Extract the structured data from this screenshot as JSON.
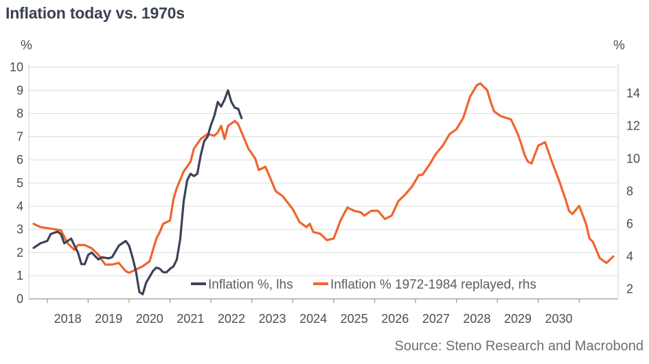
{
  "chart_data": {
    "type": "line",
    "title": "Inflation today vs. 1970s",
    "source": "Source: Steno Research and Macrobond",
    "left_axis": {
      "unit": "%",
      "range": [
        0,
        10
      ],
      "ticks": [
        "0",
        "1",
        "2",
        "3",
        "4",
        "5",
        "6",
        "7",
        "8",
        "9",
        "10"
      ]
    },
    "right_axis": {
      "unit": "%",
      "range": [
        1.4,
        15.6
      ],
      "ticks": [
        "2",
        "4",
        "6",
        "8",
        "10",
        "12",
        "14"
      ]
    },
    "x_ticks": [
      "2018",
      "2019",
      "2020",
      "2021",
      "2022",
      "2023",
      "2024",
      "2025",
      "2026",
      "2027",
      "2028",
      "2029",
      "2030"
    ],
    "grid": true,
    "legend_position": "bottom",
    "series": [
      {
        "name": "Inflation %, lhs",
        "axis": "left",
        "color": "#3a4356",
        "points": [
          [
            "2017-09",
            2.2
          ],
          [
            "2017-11",
            2.4
          ],
          [
            "2018-01",
            2.5
          ],
          [
            "2018-02",
            2.8
          ],
          [
            "2018-04",
            2.9
          ],
          [
            "2018-05",
            2.8
          ],
          [
            "2018-06",
            2.4
          ],
          [
            "2018-08",
            2.6
          ],
          [
            "2018-09",
            2.3
          ],
          [
            "2018-10",
            2.0
          ],
          [
            "2018-11",
            1.5
          ],
          [
            "2018-12",
            1.5
          ],
          [
            "2019-01",
            1.9
          ],
          [
            "2019-02",
            2.0
          ],
          [
            "2019-04",
            1.7
          ],
          [
            "2019-05",
            1.8
          ],
          [
            "2019-07",
            1.75
          ],
          [
            "2019-08",
            1.8
          ],
          [
            "2019-10",
            2.3
          ],
          [
            "2019-12",
            2.5
          ],
          [
            "2020-01",
            2.3
          ],
          [
            "2020-02",
            1.8
          ],
          [
            "2020-03",
            1.2
          ],
          [
            "2020-04",
            0.3
          ],
          [
            "2020-05",
            0.2
          ],
          [
            "2020-06",
            0.7
          ],
          [
            "2020-08",
            1.2
          ],
          [
            "2020-09",
            1.35
          ],
          [
            "2020-10",
            1.3
          ],
          [
            "2020-11",
            1.15
          ],
          [
            "2020-12",
            1.15
          ],
          [
            "2021-01",
            1.3
          ],
          [
            "2021-02",
            1.4
          ],
          [
            "2021-03",
            1.7
          ],
          [
            "2021-04",
            2.6
          ],
          [
            "2021-05",
            4.2
          ],
          [
            "2021-06",
            5.1
          ],
          [
            "2021-07",
            5.4
          ],
          [
            "2021-08",
            5.3
          ],
          [
            "2021-09",
            5.4
          ],
          [
            "2021-10",
            6.2
          ],
          [
            "2021-11",
            6.8
          ],
          [
            "2021-12",
            7.0
          ],
          [
            "2022-01",
            7.5
          ],
          [
            "2022-02",
            7.9
          ],
          [
            "2022-03",
            8.5
          ],
          [
            "2022-04",
            8.3
          ],
          [
            "2022-05",
            8.6
          ],
          [
            "2022-06",
            9.0
          ],
          [
            "2022-07",
            8.5
          ],
          [
            "2022-08",
            8.25
          ],
          [
            "2022-09",
            8.2
          ],
          [
            "2022-10",
            7.8
          ]
        ]
      },
      {
        "name": "Inflation % 1972-1984 replayed, rhs",
        "axis": "right",
        "color": "#f0642c",
        "points": [
          [
            "2017-09",
            6.0
          ],
          [
            "2017-11",
            5.8
          ],
          [
            "2018-02",
            5.7
          ],
          [
            "2018-05",
            5.6
          ],
          [
            "2018-07",
            4.8
          ],
          [
            "2018-09",
            4.4
          ],
          [
            "2018-10",
            4.7
          ],
          [
            "2018-12",
            4.7
          ],
          [
            "2019-02",
            4.5
          ],
          [
            "2019-04",
            4.1
          ],
          [
            "2019-06",
            3.5
          ],
          [
            "2019-08",
            3.5
          ],
          [
            "2019-10",
            3.6
          ],
          [
            "2019-12",
            3.1
          ],
          [
            "2020-01",
            3.0
          ],
          [
            "2020-03",
            3.2
          ],
          [
            "2020-05",
            3.4
          ],
          [
            "2020-07",
            3.7
          ],
          [
            "2020-09",
            5.1
          ],
          [
            "2020-10",
            5.5
          ],
          [
            "2020-11",
            6.0
          ],
          [
            "2021-01",
            6.2
          ],
          [
            "2021-02",
            7.5
          ],
          [
            "2021-03",
            8.2
          ],
          [
            "2021-05",
            9.2
          ],
          [
            "2021-07",
            9.8
          ],
          [
            "2021-08",
            10.6
          ],
          [
            "2021-10",
            11.2
          ],
          [
            "2021-12",
            11.5
          ],
          [
            "2022-02",
            11.4
          ],
          [
            "2022-03",
            11.6
          ],
          [
            "2022-04",
            12.0
          ],
          [
            "2022-05",
            11.2
          ],
          [
            "2022-06",
            12.0
          ],
          [
            "2022-08",
            12.3
          ],
          [
            "2022-09",
            12.1
          ],
          [
            "2022-10",
            11.6
          ],
          [
            "2022-12",
            10.6
          ],
          [
            "2023-02",
            10.0
          ],
          [
            "2023-03",
            9.3
          ],
          [
            "2023-05",
            9.5
          ],
          [
            "2023-08",
            8.0
          ],
          [
            "2023-10",
            7.7
          ],
          [
            "2024-01",
            6.9
          ],
          [
            "2024-03",
            6.1
          ],
          [
            "2024-05",
            5.8
          ],
          [
            "2024-06",
            6.0
          ],
          [
            "2024-07",
            5.5
          ],
          [
            "2024-09",
            5.4
          ],
          [
            "2024-11",
            5.0
          ],
          [
            "2025-01",
            5.1
          ],
          [
            "2025-03",
            6.2
          ],
          [
            "2025-05",
            7.0
          ],
          [
            "2025-07",
            6.8
          ],
          [
            "2025-09",
            6.7
          ],
          [
            "2025-10",
            6.5
          ],
          [
            "2025-12",
            6.8
          ],
          [
            "2026-02",
            6.8
          ],
          [
            "2026-04",
            6.3
          ],
          [
            "2026-06",
            6.5
          ],
          [
            "2026-08",
            7.4
          ],
          [
            "2026-10",
            7.8
          ],
          [
            "2026-12",
            8.3
          ],
          [
            "2027-02",
            9.0
          ],
          [
            "2027-03",
            9.0
          ],
          [
            "2027-05",
            9.6
          ],
          [
            "2027-07",
            10.3
          ],
          [
            "2027-09",
            10.8
          ],
          [
            "2027-11",
            11.5
          ],
          [
            "2028-01",
            11.8
          ],
          [
            "2028-03",
            12.5
          ],
          [
            "2028-05",
            13.8
          ],
          [
            "2028-07",
            14.5
          ],
          [
            "2028-08",
            14.6
          ],
          [
            "2028-10",
            14.2
          ],
          [
            "2028-11",
            13.5
          ],
          [
            "2028-12",
            12.9
          ],
          [
            "2029-02",
            12.6
          ],
          [
            "2029-05",
            12.4
          ],
          [
            "2029-07",
            11.5
          ],
          [
            "2029-08",
            10.9
          ],
          [
            "2029-09",
            10.2
          ],
          [
            "2029-10",
            9.8
          ],
          [
            "2029-11",
            9.7
          ],
          [
            "2030-01",
            10.8
          ],
          [
            "2030-03",
            11.0
          ],
          [
            "2030-05",
            9.8
          ],
          [
            "2030-07",
            8.7
          ],
          [
            "2030-09",
            7.5
          ],
          [
            "2030-10",
            6.8
          ],
          [
            "2030-11",
            6.6
          ],
          [
            "2031-01",
            7.1
          ],
          [
            "2031-03",
            6.0
          ],
          [
            "2031-04",
            5.1
          ],
          [
            "2031-05",
            4.9
          ],
          [
            "2031-07",
            3.9
          ],
          [
            "2031-09",
            3.6
          ],
          [
            "2031-11",
            4.0
          ]
        ]
      }
    ]
  }
}
